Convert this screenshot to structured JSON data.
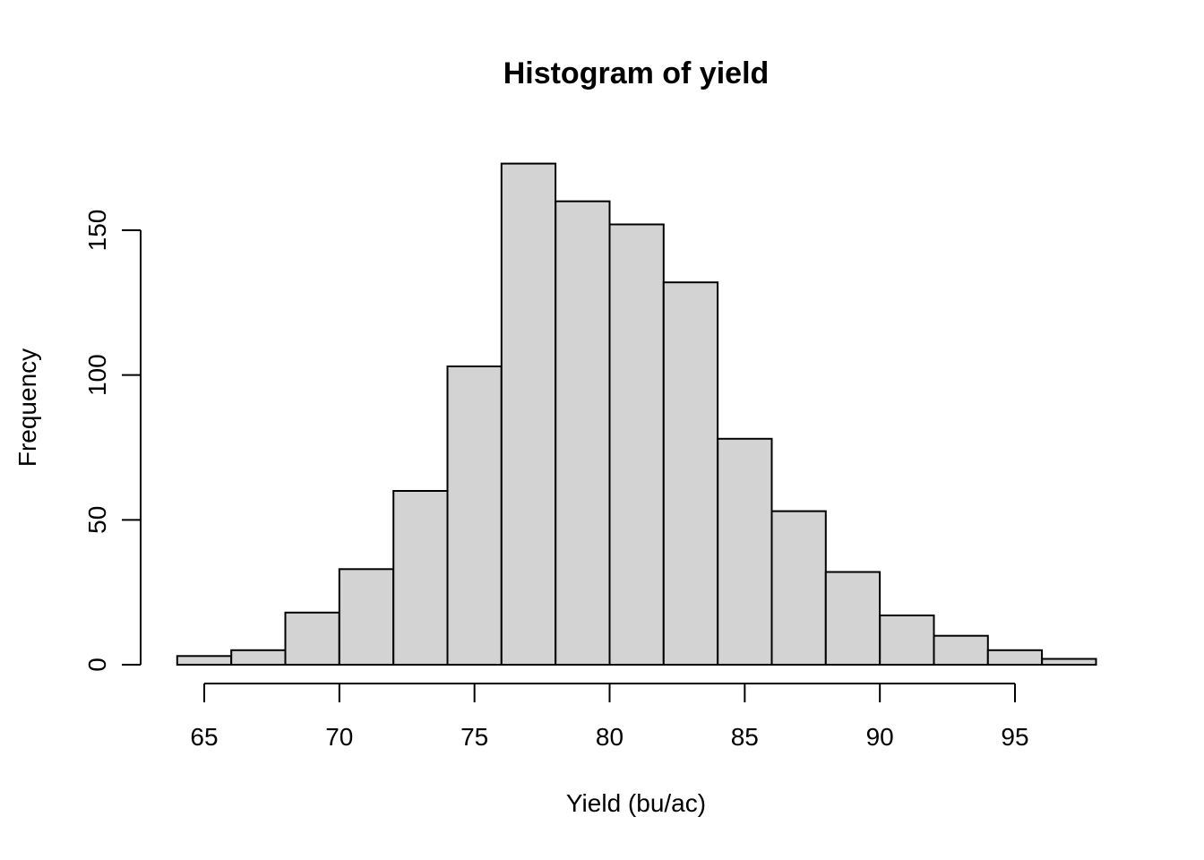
{
  "window": {
    "background_color": "#ffffff"
  },
  "chart_data": {
    "type": "bar",
    "subtype": "histogram",
    "title": "Histogram of yield",
    "xlabel": "Yield (bu/ac)",
    "ylabel": "Frequency",
    "bin_edges": [
      64,
      66,
      68,
      70,
      72,
      74,
      76,
      78,
      80,
      82,
      84,
      86,
      88,
      90,
      92,
      94,
      96,
      98
    ],
    "values": [
      3,
      5,
      18,
      33,
      60,
      103,
      173,
      160,
      152,
      132,
      78,
      53,
      32,
      17,
      10,
      5,
      2
    ],
    "x_ticks": [
      65,
      70,
      75,
      80,
      85,
      90,
      95
    ],
    "y_ticks": [
      0,
      50,
      100,
      150
    ],
    "xlim": [
      64,
      98
    ],
    "ylim": [
      0,
      173
    ],
    "grid": false,
    "legend": "none",
    "bar_fill": "#d3d3d3",
    "bar_border": "#000000",
    "axis_color": "#000000",
    "text_color": "#000000"
  }
}
